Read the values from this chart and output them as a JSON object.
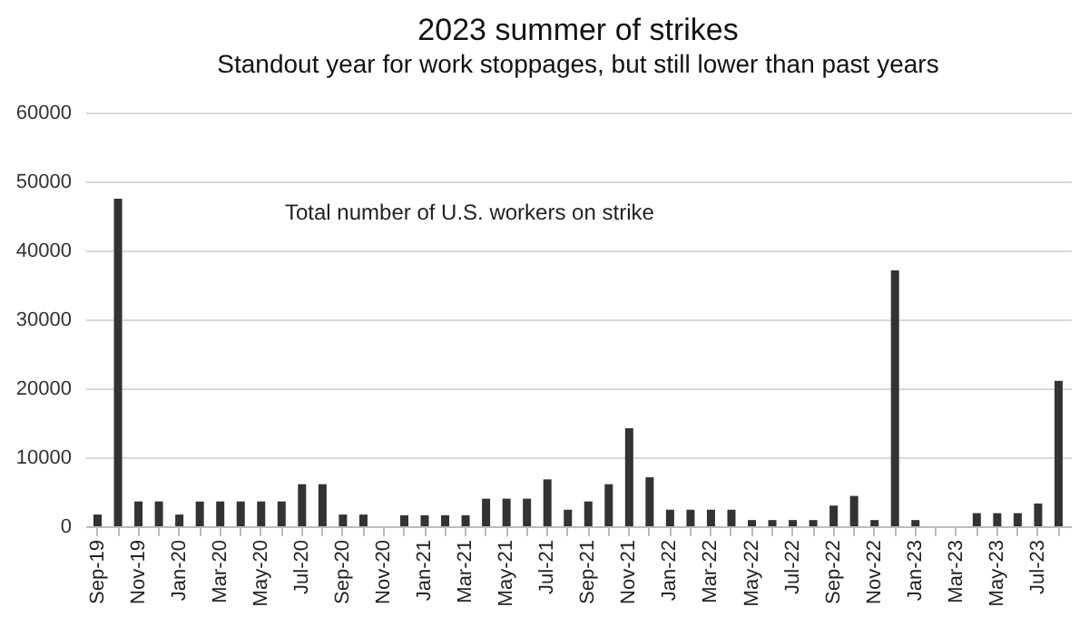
{
  "chart_data": {
    "type": "bar",
    "title": "2023 summer of strikes",
    "subtitle": "Standout year for work stoppages, but still lower than past years",
    "annotations": [
      "Total number of U.S. workers on strike"
    ],
    "categories": [
      "Sep-19",
      null,
      "Nov-19",
      null,
      "Jan-20",
      null,
      "Mar-20",
      null,
      "May-20",
      null,
      "Jul-20",
      null,
      "Sep-20",
      null,
      "Nov-20",
      null,
      "Jan-21",
      null,
      "Mar-21",
      null,
      "May-21",
      null,
      "Jul-21",
      null,
      "Sep-21",
      null,
      "Nov-21",
      null,
      "Jan-22",
      null,
      "Mar-22",
      null,
      "May-22",
      null,
      "Jul-22",
      null,
      "Sep-22",
      null,
      "Nov-22",
      null,
      "Jan-23",
      null,
      "Mar-23",
      null,
      "May-23",
      null,
      "Jul-23",
      null
    ],
    "values": [
      1700,
      47500,
      3600,
      3600,
      1700,
      3600,
      3600,
      3600,
      3600,
      3600,
      6100,
      6100,
      1700,
      1700,
      0,
      1600,
      1600,
      1600,
      1600,
      4000,
      4000,
      4000,
      6800,
      2400,
      3600,
      6100,
      14200,
      7100,
      2400,
      2400,
      2400,
      2400,
      900,
      900,
      900,
      900,
      3000,
      4400,
      900,
      37100,
      900,
      0,
      0,
      1900,
      1900,
      1900,
      3300,
      21100
    ],
    "color": "#333333",
    "ylim": [
      0,
      60000
    ],
    "yticks": [
      0,
      10000,
      20000,
      30000,
      40000,
      50000,
      60000
    ],
    "grid": "y"
  }
}
